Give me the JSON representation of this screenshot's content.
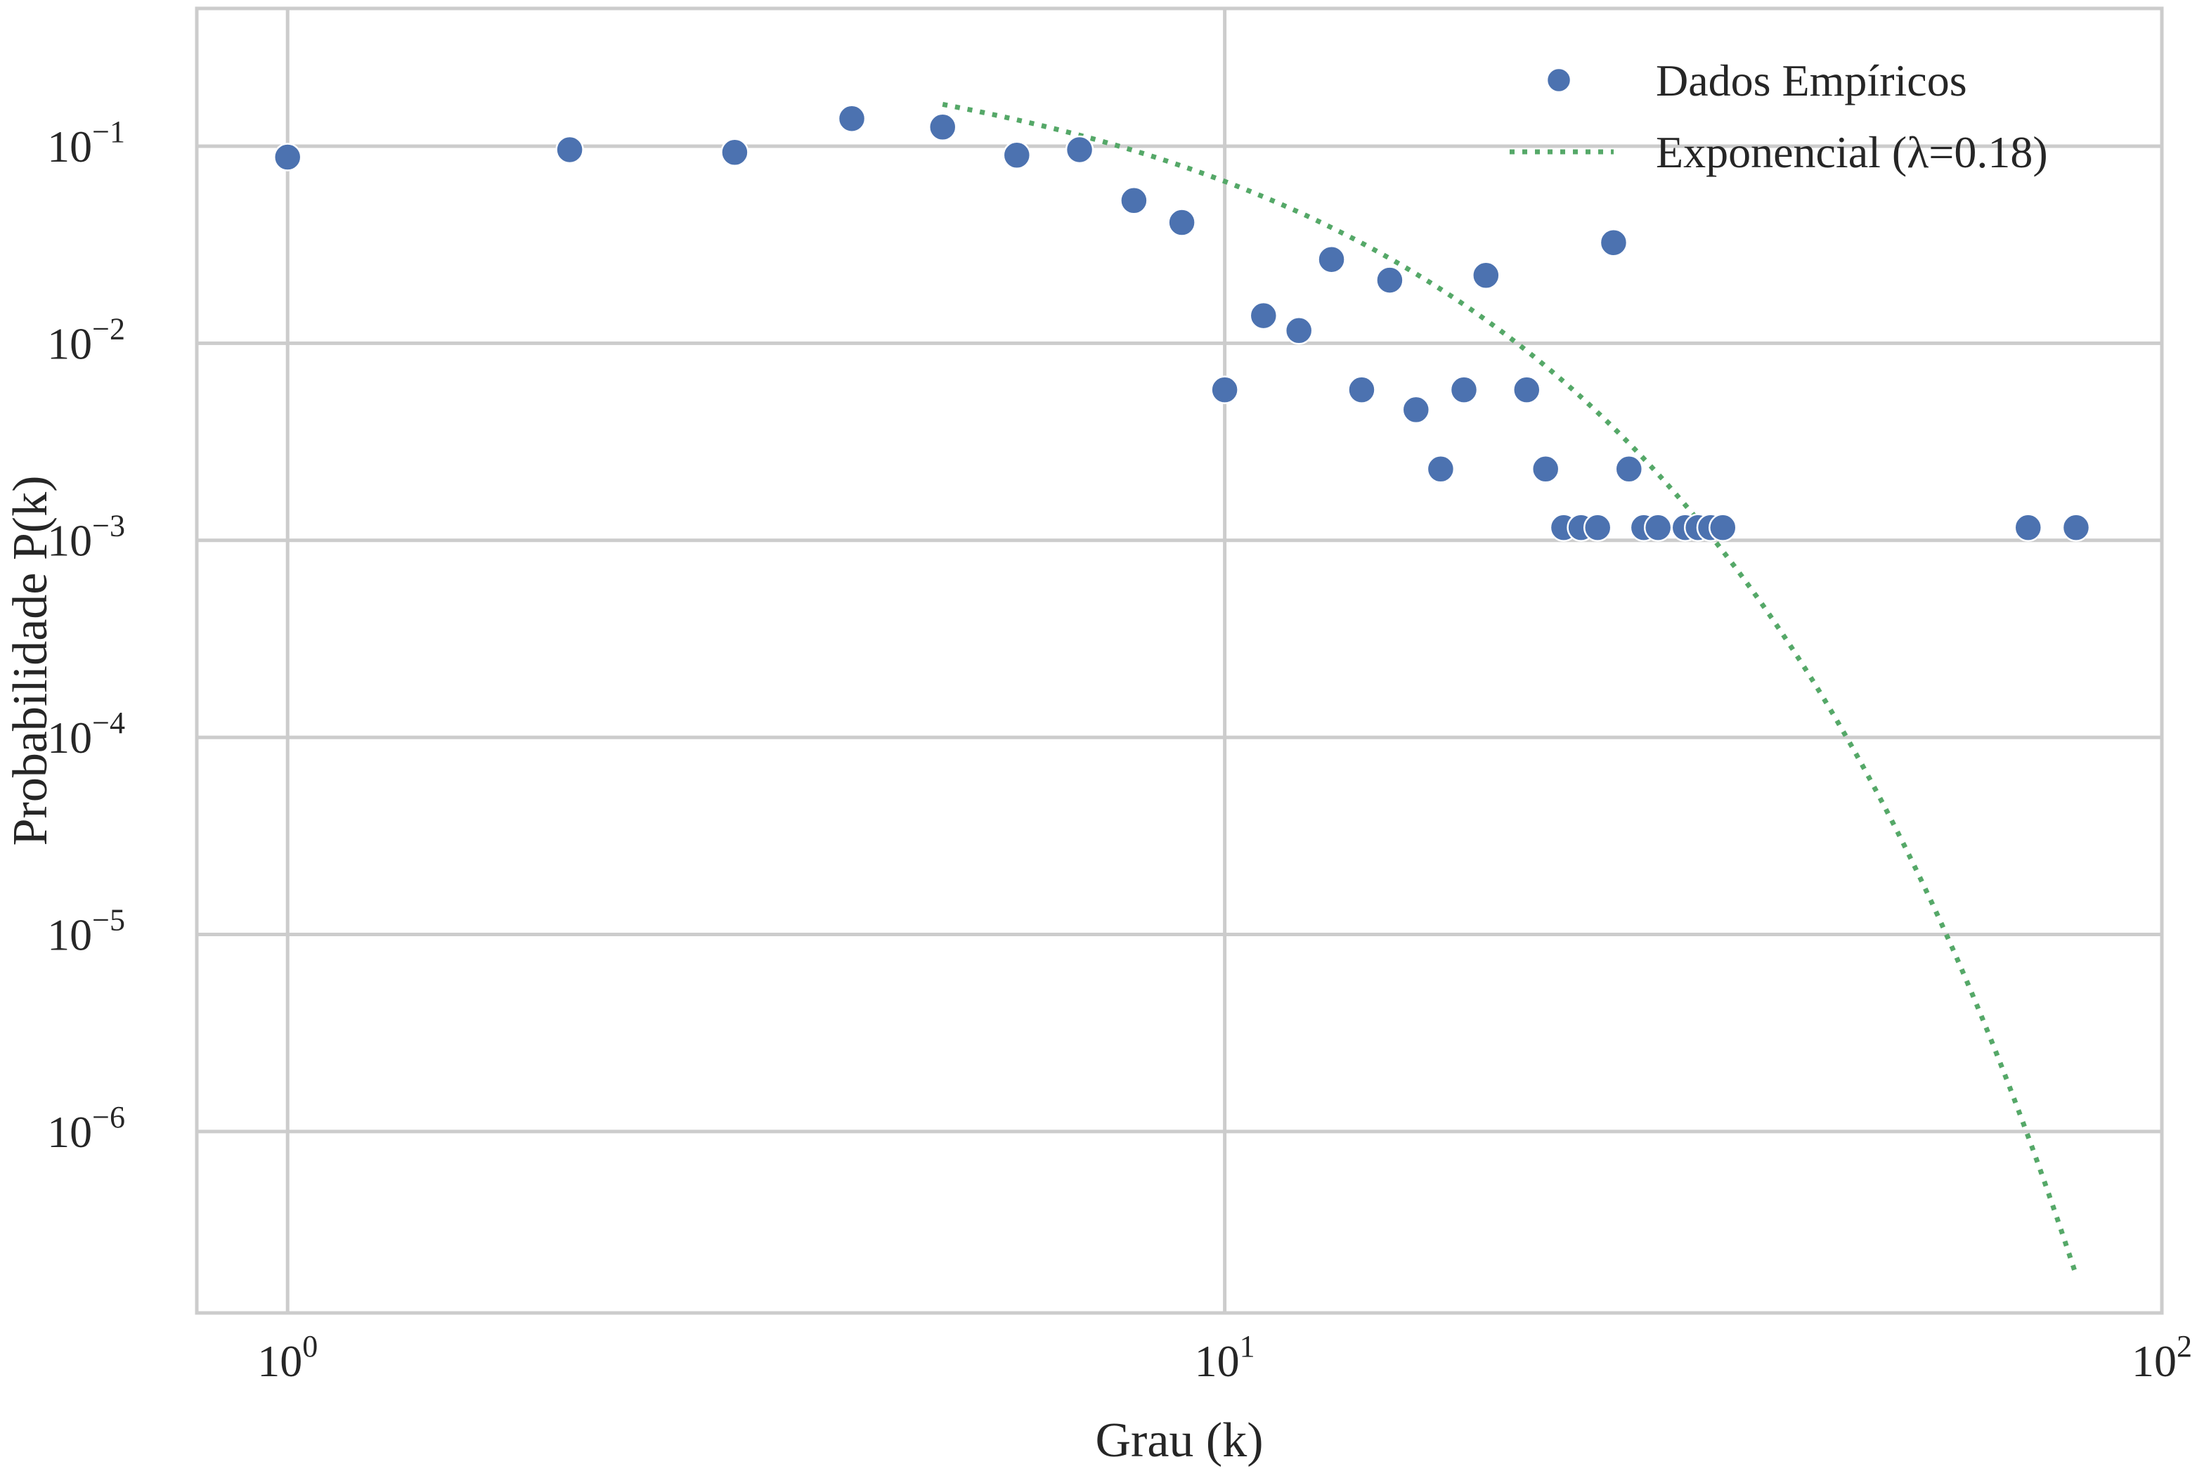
{
  "chart_data": {
    "type": "scatter",
    "xscale": "log",
    "yscale": "log",
    "xlabel": "Grau (k)",
    "ylabel": "Probabilidade P(k)",
    "xlim": [
      0.8,
      100
    ],
    "ylim": [
      1.2e-07,
      0.5
    ],
    "grid": true,
    "legend_position": "top-right",
    "x_ticks": [
      {
        "value": 1,
        "base": "10",
        "exp": "0"
      },
      {
        "value": 10,
        "base": "10",
        "exp": "1"
      },
      {
        "value": 100,
        "base": "10",
        "exp": "2"
      }
    ],
    "y_ticks": [
      {
        "value": 0.1,
        "base": "10",
        "exp": "−1"
      },
      {
        "value": 0.01,
        "base": "10",
        "exp": "−2"
      },
      {
        "value": 0.001,
        "base": "10",
        "exp": "−3"
      },
      {
        "value": 0.0001,
        "base": "10",
        "exp": "−4"
      },
      {
        "value": 1e-05,
        "base": "10",
        "exp": "−5"
      },
      {
        "value": 1e-06,
        "base": "10",
        "exp": "−6"
      }
    ],
    "series": [
      {
        "name": "Dados Empíricos",
        "kind": "scatter",
        "color": "#4c72b0",
        "points": [
          {
            "x": 1,
            "y": 0.088
          },
          {
            "x": 2,
            "y": 0.096
          },
          {
            "x": 3,
            "y": 0.093
          },
          {
            "x": 4,
            "y": 0.138
          },
          {
            "x": 5,
            "y": 0.125
          },
          {
            "x": 6,
            "y": 0.09
          },
          {
            "x": 7,
            "y": 0.096
          },
          {
            "x": 8,
            "y": 0.053
          },
          {
            "x": 9,
            "y": 0.041
          },
          {
            "x": 10,
            "y": 0.0058
          },
          {
            "x": 11,
            "y": 0.0138
          },
          {
            "x": 12,
            "y": 0.0116
          },
          {
            "x": 13,
            "y": 0.0266
          },
          {
            "x": 14,
            "y": 0.0058
          },
          {
            "x": 15,
            "y": 0.0209
          },
          {
            "x": 16,
            "y": 0.0046
          },
          {
            "x": 17,
            "y": 0.0023
          },
          {
            "x": 18,
            "y": 0.0058
          },
          {
            "x": 19,
            "y": 0.0221
          },
          {
            "x": 21,
            "y": 0.0058
          },
          {
            "x": 22,
            "y": 0.0023
          },
          {
            "x": 23,
            "y": 0.00116
          },
          {
            "x": 24,
            "y": 0.00116
          },
          {
            "x": 25,
            "y": 0.00116
          },
          {
            "x": 26,
            "y": 0.0324
          },
          {
            "x": 27,
            "y": 0.0023
          },
          {
            "x": 28,
            "y": 0.00116
          },
          {
            "x": 29,
            "y": 0.00116
          },
          {
            "x": 31,
            "y": 0.00116
          },
          {
            "x": 32,
            "y": 0.00116
          },
          {
            "x": 33,
            "y": 0.00116
          },
          {
            "x": 34,
            "y": 0.00116
          },
          {
            "x": 72,
            "y": 0.00116
          },
          {
            "x": 81,
            "y": 0.00116
          }
        ]
      },
      {
        "name": "Exponencial (λ=0.18)",
        "kind": "line",
        "style": "dotted",
        "color": "#55a868",
        "lambda": 0.18,
        "x_range": [
          5,
          81
        ],
        "y_at_x_start": 0.163
      }
    ]
  }
}
